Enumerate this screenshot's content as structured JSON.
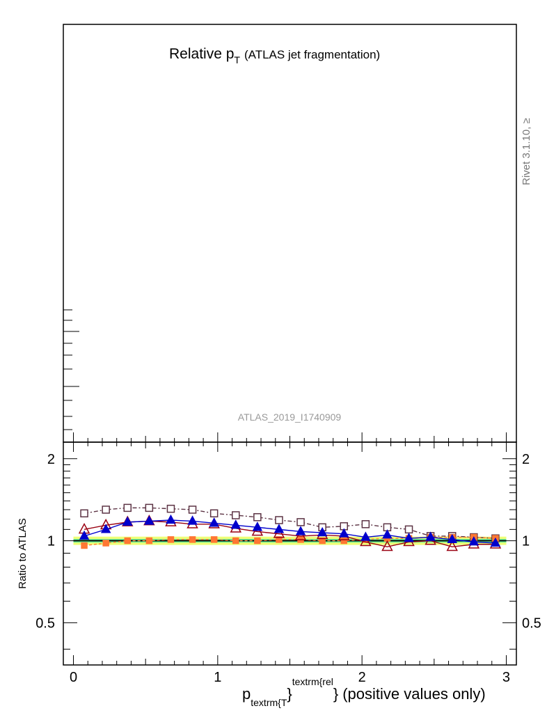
{
  "title": {
    "main": "Relative p",
    "sub": "T",
    "suffix": "(ATLAS jet fragmentation)"
  },
  "watermark": "ATLAS_2019_I1740909",
  "side_label": "Rivet 3.1.10, ≥",
  "xlabel": {
    "p": "p",
    "sub": "textrm{T",
    "sup": "textrm{rel",
    "brace1": "}",
    "brace2": "}",
    "rest": "(positive values only)"
  },
  "ratio_ylabel": "Ratio to ATLAS",
  "chart_data": {
    "type": "line",
    "xlim": [
      -0.07,
      3.07
    ],
    "ylim": [
      0.35,
      2.3
    ],
    "yscale": "log",
    "x_ticks": [
      {
        "value": 0,
        "label": "0"
      },
      {
        "value": 1,
        "label": "1"
      },
      {
        "value": 2,
        "label": "2"
      },
      {
        "value": 3,
        "label": "3"
      }
    ],
    "y_ticks": [
      {
        "value": 0.5,
        "label": "0.5"
      },
      {
        "value": 1,
        "label": "1"
      },
      {
        "value": 2,
        "label": "2"
      }
    ],
    "x": [
      0.075,
      0.225,
      0.375,
      0.525,
      0.675,
      0.825,
      0.975,
      1.125,
      1.275,
      1.425,
      1.575,
      1.725,
      1.875,
      2.025,
      2.175,
      2.325,
      2.475,
      2.625,
      2.775,
      2.925
    ],
    "reference_band": {
      "inner_color": "#66ee99",
      "outer_color": "#eeff77",
      "inner": [
        0.985,
        1.015
      ],
      "outer": [
        0.965,
        1.035
      ]
    },
    "series": [
      {
        "color": "#5c3344",
        "dash": "6,3,2,3",
        "marker": "open-square",
        "values": [
          1.26,
          1.3,
          1.32,
          1.32,
          1.31,
          1.3,
          1.26,
          1.24,
          1.22,
          1.19,
          1.17,
          1.12,
          1.13,
          1.15,
          1.12,
          1.1,
          1.04,
          1.04,
          1.03,
          1.02
        ]
      },
      {
        "color": "#ff7733",
        "dash": "4,3",
        "marker": "filled-square",
        "values": [
          0.96,
          0.98,
          1.0,
          1.0,
          1.01,
          1.01,
          1.01,
          1.0,
          1.0,
          1.01,
          1.01,
          1.0,
          1.0,
          1.01,
          1.02,
          1.02,
          1.03,
          1.03,
          1.03,
          1.02
        ]
      },
      {
        "color": "#990011",
        "dash": "",
        "marker": "open-triangle",
        "values": [
          1.1,
          1.14,
          1.17,
          1.18,
          1.17,
          1.15,
          1.15,
          1.11,
          1.08,
          1.06,
          1.04,
          1.05,
          1.04,
          0.99,
          0.95,
          0.99,
          1.0,
          0.95,
          0.97,
          0.97
        ]
      },
      {
        "color": "#0000cc",
        "dash": "",
        "marker": "filled-triangle",
        "values": [
          1.04,
          1.1,
          1.17,
          1.18,
          1.19,
          1.18,
          1.16,
          1.14,
          1.12,
          1.1,
          1.08,
          1.07,
          1.06,
          1.03,
          1.05,
          1.02,
          1.03,
          1.01,
          0.99,
          0.98
        ]
      }
    ]
  }
}
